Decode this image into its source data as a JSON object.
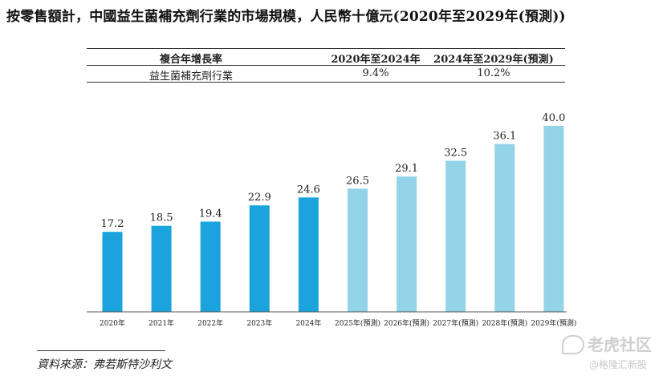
{
  "title": "按零售額計，中國益生菌補充劑行業的市場規模，人民幣十億元(2020年至2029年(預測))",
  "cagr_table": {
    "header": [
      "複合年增長率",
      "2020年至2024年",
      "2024年至2029年(預測)"
    ],
    "row": [
      "益生菌補充劑行業",
      "9.4%",
      "10.2%"
    ]
  },
  "chart_data": {
    "type": "bar",
    "title": "",
    "xlabel": "",
    "ylabel": "",
    "categories": [
      "2020年",
      "2021年",
      "2022年",
      "2023年",
      "2024年",
      "2025年(預測)",
      "2026年(預測)",
      "2027年(預測)",
      "2028年(預測)",
      "2029年(預測)"
    ],
    "values": [
      17.2,
      18.5,
      19.4,
      22.9,
      24.6,
      26.5,
      29.1,
      32.5,
      36.1,
      40.0
    ],
    "value_labels": [
      "17.2",
      "18.5",
      "19.4",
      "22.9",
      "24.6",
      "26.5",
      "29.1",
      "32.5",
      "36.1",
      "40.0"
    ],
    "forecast": [
      false,
      false,
      false,
      false,
      false,
      true,
      true,
      true,
      true,
      true
    ],
    "colors": {
      "actual": "#1aa3dc",
      "forecast": "#93d3e8",
      "axis": "#555555"
    },
    "ylim": [
      0,
      40
    ],
    "grid": false,
    "legend": "none"
  },
  "source": "資料來源：弗若斯特沙利文",
  "watermark": {
    "logo": "tiger-logo-icon",
    "main": "老虎社区",
    "sub": "@格隆汇新股"
  }
}
